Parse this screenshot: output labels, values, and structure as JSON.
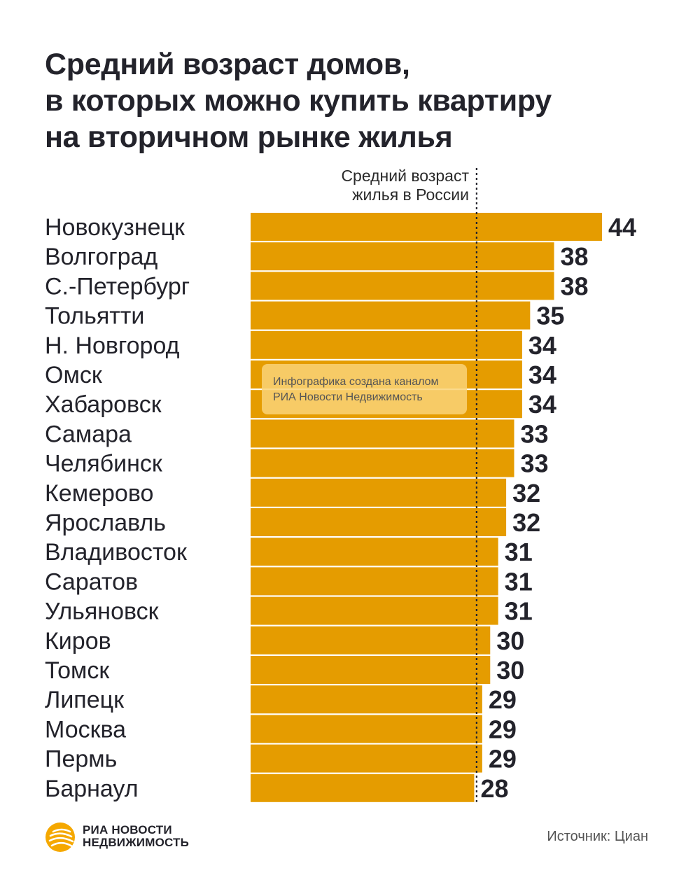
{
  "chart_data": {
    "type": "bar",
    "orientation": "horizontal",
    "title": [
      "Средний возраст домов,",
      "в которых можно купить квартиру",
      "на вторичном рынке жилья"
    ],
    "reference_line": {
      "label": [
        "Средний возраст",
        "жилья в России"
      ],
      "value": 28.3,
      "style": "dotted"
    },
    "categories": [
      "Новокузнецк",
      "Волгоград",
      "С.-Петербург",
      "Тольятти",
      "Н. Новгород",
      "Омск",
      "Хабаровск",
      "Самара",
      "Челябинск",
      "Кемерово",
      "Ярославль",
      "Владивосток",
      "Саратов",
      "Ульяновск",
      "Киров",
      "Томск",
      "Липецк",
      "Москва",
      "Пермь",
      "Барнаул"
    ],
    "values": [
      44,
      38,
      38,
      35,
      34,
      34,
      34,
      33,
      33,
      32,
      32,
      31,
      31,
      31,
      30,
      30,
      29,
      29,
      29,
      28
    ],
    "xlim": [
      0,
      44
    ],
    "bar_color": "#E59C00",
    "grid": false,
    "legend": "none"
  },
  "watermark": {
    "lines": [
      "Инфографика создана каналом",
      "РИА Новости Недвижимость"
    ]
  },
  "logo": {
    "lines": [
      "РИА НОВОСТИ",
      "НЕДВИЖИМОСТЬ"
    ],
    "color": "#F5A800"
  },
  "source": "Источник: Циан"
}
